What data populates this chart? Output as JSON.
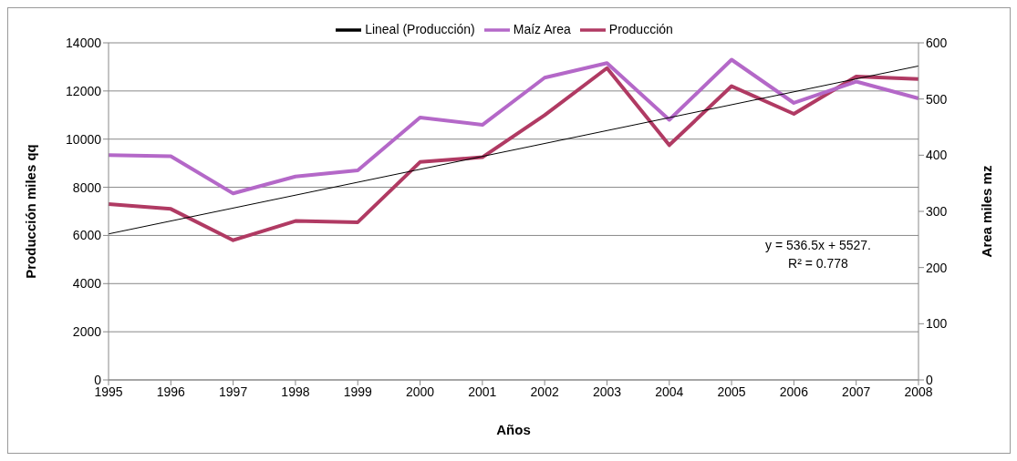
{
  "chart_data": {
    "type": "line",
    "xlabel": "Años",
    "ylabel": "Producción miles qq",
    "y2label": "Area miles mz",
    "categories": [
      "1995",
      "1996",
      "1997",
      "1998",
      "1999",
      "2000",
      "2001",
      "2002",
      "2003",
      "2004",
      "2005",
      "2006",
      "2007",
      "2008"
    ],
    "series": [
      {
        "name": "Producción",
        "color": "#b03a63",
        "values": [
          7300,
          7100,
          5800,
          6600,
          6550,
          9050,
          9250,
          11000,
          12950,
          9750,
          12200,
          11050,
          12600,
          12500
        ]
      },
      {
        "name": "Maíz Area",
        "color": "#b468c8",
        "axis": "y2",
        "values": [
          400,
          398,
          332,
          362,
          373,
          467,
          454,
          538,
          564,
          463,
          570,
          493,
          531,
          501
        ]
      },
      {
        "name": "Lineal (Producción)",
        "color": "#000000",
        "values": [
          6064,
          null,
          null,
          null,
          null,
          null,
          null,
          null,
          null,
          null,
          null,
          null,
          null,
          13038
        ]
      }
    ],
    "ylim": [
      0,
      14000
    ],
    "yticks": [
      0,
      2000,
      4000,
      6000,
      8000,
      10000,
      12000,
      14000
    ],
    "y2lim": [
      0,
      600
    ],
    "y2ticks": [
      0,
      100,
      200,
      300,
      400,
      500,
      600
    ],
    "grid": "y",
    "legend": "top",
    "marker": "none",
    "annotations": [
      "y = 536.5x + 5527.\nR² = 0.778"
    ]
  }
}
